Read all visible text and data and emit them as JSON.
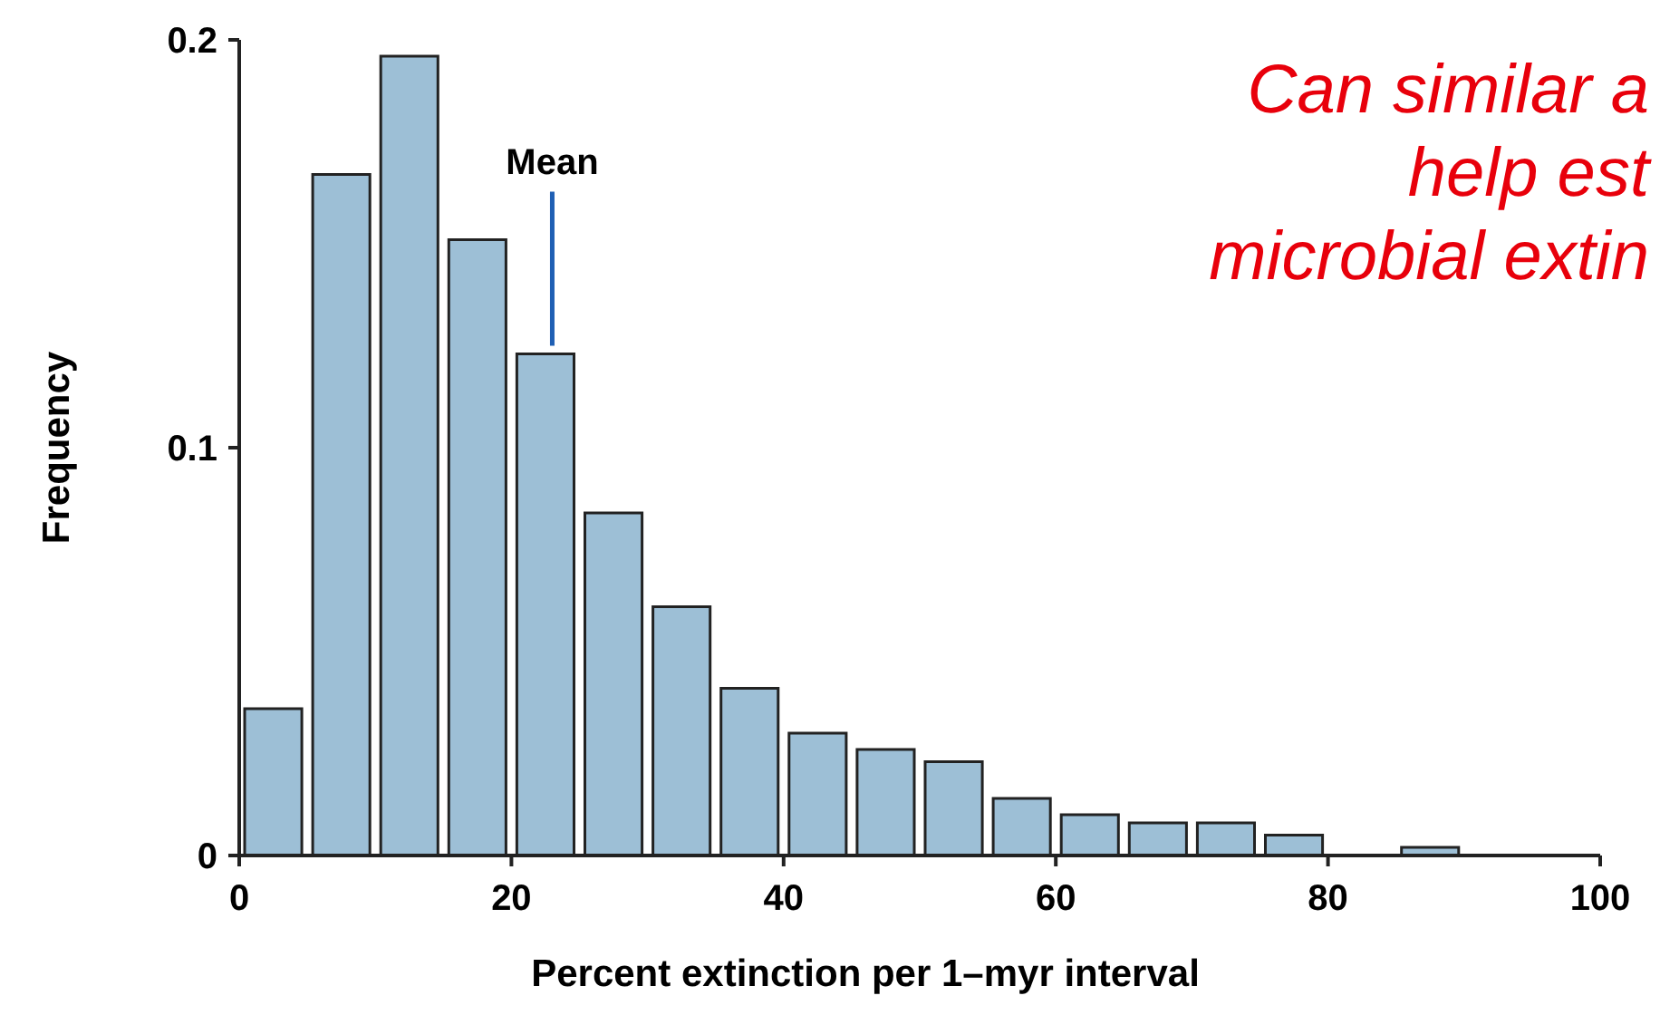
{
  "chart_data": {
    "type": "histogram",
    "xlabel": "Percent extinction per 1–myr interval",
    "ylabel": "Frequency",
    "bins": [
      0,
      5,
      10,
      15,
      20,
      25,
      30,
      35,
      40,
      45,
      50,
      55,
      60,
      65,
      70,
      75,
      80,
      85,
      90
    ],
    "values": [
      0.036,
      0.167,
      0.196,
      0.151,
      0.123,
      0.084,
      0.061,
      0.041,
      0.03,
      0.026,
      0.023,
      0.014,
      0.01,
      0.008,
      0.008,
      0.005,
      0,
      0.002
    ],
    "color": "#9dbfd6",
    "xlim": [
      0,
      100
    ],
    "xticks": [
      0,
      20,
      40,
      60,
      80,
      100
    ],
    "ylim": [
      0,
      0.2
    ],
    "yticks": [
      {
        "value": 0,
        "label": "0"
      },
      0.1,
      0.2
    ],
    "grid": false,
    "annotations": [
      {
        "text": "Mean",
        "x": 23,
        "y": 0.125
      },
      "Can similar a",
      "help est",
      "microbial extin"
    ]
  }
}
